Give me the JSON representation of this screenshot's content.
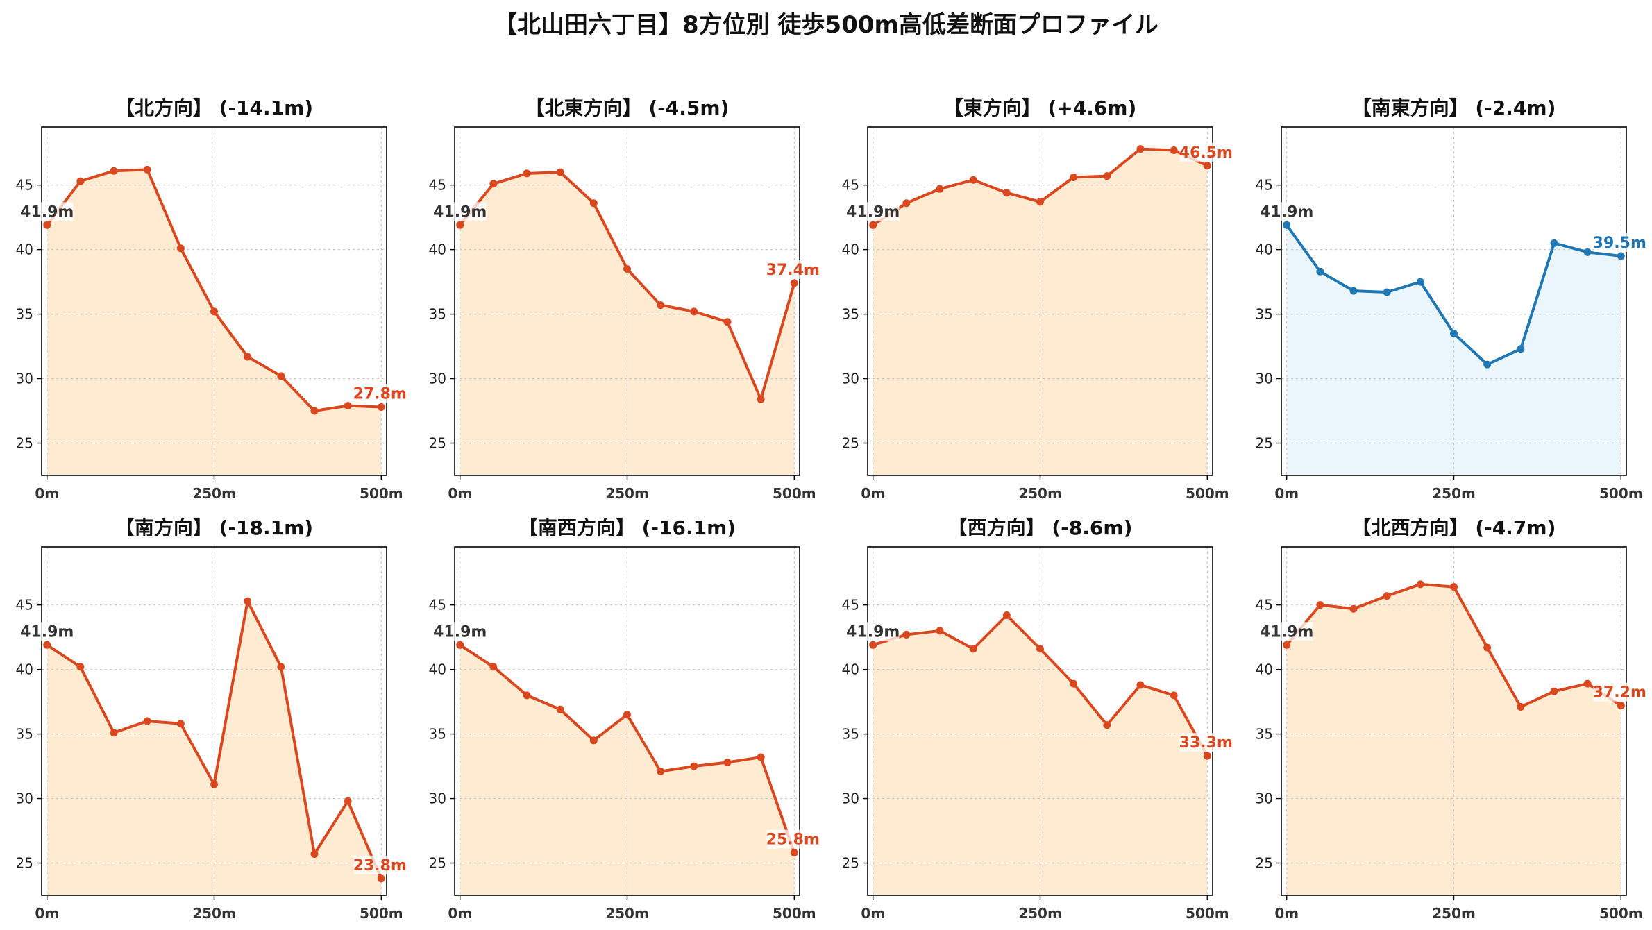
{
  "title": "【北山田六丁目】8方位別 徒歩500m高低差断面プロファイル",
  "colors": {
    "downhill_line": "#d9481f",
    "downhill_fill": "#feebd2",
    "uphill_line": "#1f77b4",
    "uphill_fill": "#eaf6fb",
    "grid": "#c8c8c8",
    "label_start": "#333333"
  },
  "chart_data": [
    {
      "type": "line",
      "title": "【北方向】 (-14.1m)",
      "xticks": [
        "0m",
        "250m",
        "500m"
      ],
      "yticks": [
        "25",
        "30",
        "35",
        "40",
        "45"
      ],
      "ylim": [
        22.5,
        49.5
      ],
      "xlim": [
        -8,
        508
      ],
      "grid": true,
      "style": "orange",
      "x": [
        0,
        50,
        100,
        150,
        200,
        250,
        300,
        350,
        400,
        450,
        500
      ],
      "y": [
        41.9,
        45.3,
        46.1,
        46.2,
        40.1,
        35.2,
        31.7,
        30.2,
        27.5,
        27.9,
        27.8
      ],
      "start_label": "41.9m",
      "end_label": "27.8m"
    },
    {
      "type": "line",
      "title": "【北東方向】 (-4.5m)",
      "xticks": [
        "0m",
        "250m",
        "500m"
      ],
      "yticks": [
        "25",
        "30",
        "35",
        "40",
        "45"
      ],
      "ylim": [
        22.5,
        49.5
      ],
      "xlim": [
        -8,
        508
      ],
      "grid": true,
      "style": "orange",
      "x": [
        0,
        50,
        100,
        150,
        200,
        250,
        300,
        350,
        400,
        450,
        500
      ],
      "y": [
        41.9,
        45.1,
        45.9,
        46.0,
        43.6,
        38.5,
        35.7,
        35.2,
        34.4,
        28.4,
        37.4
      ],
      "start_label": "41.9m",
      "end_label": "37.4m"
    },
    {
      "type": "line",
      "title": "【東方向】 (+4.6m)",
      "xticks": [
        "0m",
        "250m",
        "500m"
      ],
      "yticks": [
        "25",
        "30",
        "35",
        "40",
        "45"
      ],
      "ylim": [
        22.5,
        49.5
      ],
      "xlim": [
        -8,
        508
      ],
      "grid": true,
      "style": "orange",
      "x": [
        0,
        50,
        100,
        150,
        200,
        250,
        300,
        350,
        400,
        450,
        500
      ],
      "y": [
        41.9,
        43.6,
        44.7,
        45.4,
        44.4,
        43.7,
        45.6,
        45.7,
        47.8,
        47.7,
        46.5
      ],
      "start_label": "41.9m",
      "end_label": "46.5m"
    },
    {
      "type": "line",
      "title": "【南東方向】 (-2.4m)",
      "xticks": [
        "0m",
        "250m",
        "500m"
      ],
      "yticks": [
        "25",
        "30",
        "35",
        "40",
        "45"
      ],
      "ylim": [
        22.5,
        49.5
      ],
      "xlim": [
        -8,
        508
      ],
      "grid": true,
      "style": "blue",
      "x": [
        0,
        50,
        100,
        150,
        200,
        250,
        300,
        350,
        400,
        450,
        500
      ],
      "y": [
        41.9,
        38.3,
        36.8,
        36.7,
        37.5,
        33.5,
        31.1,
        32.3,
        40.5,
        39.8,
        39.5
      ],
      "start_label": "41.9m",
      "end_label": "39.5m"
    },
    {
      "type": "line",
      "title": "【南方向】 (-18.1m)",
      "xticks": [
        "0m",
        "250m",
        "500m"
      ],
      "yticks": [
        "25",
        "30",
        "35",
        "40",
        "45"
      ],
      "ylim": [
        22.5,
        49.5
      ],
      "xlim": [
        -8,
        508
      ],
      "grid": true,
      "style": "orange",
      "x": [
        0,
        50,
        100,
        150,
        200,
        250,
        300,
        350,
        400,
        450,
        500
      ],
      "y": [
        41.9,
        40.2,
        35.1,
        36.0,
        35.8,
        31.1,
        45.3,
        40.2,
        25.7,
        29.8,
        23.8
      ],
      "start_label": "41.9m",
      "end_label": "23.8m"
    },
    {
      "type": "line",
      "title": "【南西方向】 (-16.1m)",
      "xticks": [
        "0m",
        "250m",
        "500m"
      ],
      "yticks": [
        "25",
        "30",
        "35",
        "40",
        "45"
      ],
      "ylim": [
        22.5,
        49.5
      ],
      "xlim": [
        -8,
        508
      ],
      "grid": true,
      "style": "orange",
      "x": [
        0,
        50,
        100,
        150,
        200,
        250,
        300,
        350,
        400,
        450,
        500
      ],
      "y": [
        41.9,
        40.2,
        38.0,
        36.9,
        34.5,
        36.5,
        32.1,
        32.5,
        32.8,
        33.2,
        25.8
      ],
      "start_label": "41.9m",
      "end_label": "25.8m"
    },
    {
      "type": "line",
      "title": "【西方向】 (-8.6m)",
      "xticks": [
        "0m",
        "250m",
        "500m"
      ],
      "yticks": [
        "25",
        "30",
        "35",
        "40",
        "45"
      ],
      "ylim": [
        22.5,
        49.5
      ],
      "xlim": [
        -8,
        508
      ],
      "grid": true,
      "style": "orange",
      "x": [
        0,
        50,
        100,
        150,
        200,
        250,
        300,
        350,
        400,
        450,
        500
      ],
      "y": [
        41.9,
        42.7,
        43.0,
        41.6,
        44.2,
        41.6,
        38.9,
        35.7,
        38.8,
        38.0,
        33.3
      ],
      "start_label": "41.9m",
      "end_label": "33.3m"
    },
    {
      "type": "line",
      "title": "【北西方向】 (-4.7m)",
      "xticks": [
        "0m",
        "250m",
        "500m"
      ],
      "yticks": [
        "25",
        "30",
        "35",
        "40",
        "45"
      ],
      "ylim": [
        22.5,
        49.5
      ],
      "xlim": [
        -8,
        508
      ],
      "grid": true,
      "style": "orange",
      "x": [
        0,
        50,
        100,
        150,
        200,
        250,
        300,
        350,
        400,
        450,
        500
      ],
      "y": [
        41.9,
        45.0,
        44.7,
        45.7,
        46.6,
        46.4,
        41.7,
        37.1,
        38.3,
        38.9,
        37.2
      ],
      "start_label": "41.9m",
      "end_label": "37.2m"
    }
  ]
}
